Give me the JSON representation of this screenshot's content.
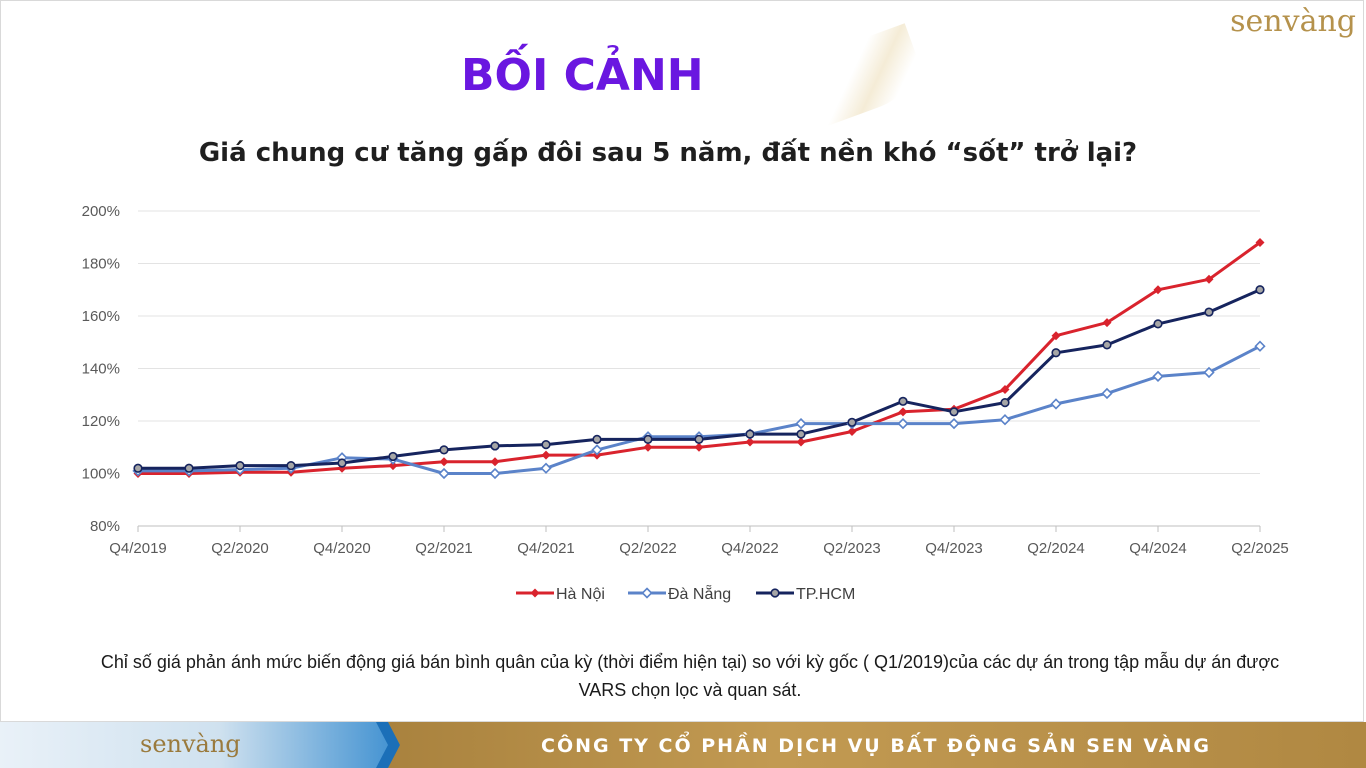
{
  "brand": {
    "logo_text": "senvàng"
  },
  "heading": "BỐI CẢNH",
  "subtitle": "Giá chung cư tăng gấp đôi sau 5 năm, đất nền khó “sốt” trở lại?",
  "note_line1": "Chỉ số giá phản ánh mức biến động giá bán bình quân của kỳ (thời điểm hiện tại) so với kỳ gốc ( Q1/2019)của các dự án trong tập mẫu dự án được",
  "note_line2": "VARS chọn lọc và quan sát.",
  "footer": {
    "company": "CÔNG TY CỔ PHẦN DỊCH VỤ BẤT ĐỘNG SẢN SEN VÀNG",
    "logo_text": "senvàng"
  },
  "colors": {
    "heading": "#6a17e0",
    "gold": "#b5924c",
    "blue": "#1b6fb8"
  },
  "chart_data": {
    "type": "line",
    "x": [
      "Q4/2019",
      "Q1/2020",
      "Q2/2020",
      "Q3/2020",
      "Q4/2020",
      "Q1/2021",
      "Q2/2021",
      "Q3/2021",
      "Q4/2021",
      "Q1/2022",
      "Q2/2022",
      "Q3/2022",
      "Q4/2022",
      "Q1/2023",
      "Q2/2023",
      "Q3/2023",
      "Q4/2023",
      "Q1/2024",
      "Q2/2024",
      "Q3/2024",
      "Q4/2024",
      "Q1/2025",
      "Q2/2025"
    ],
    "x_tick_labels": [
      "Q4/2019",
      "Q2/2020",
      "Q4/2020",
      "Q2/2021",
      "Q4/2021",
      "Q2/2022",
      "Q4/2022",
      "Q2/2023",
      "Q4/2023",
      "Q2/2024",
      "Q4/2024",
      "Q2/2025"
    ],
    "y_tick_labels": [
      "80%",
      "100%",
      "120%",
      "140%",
      "160%",
      "180%",
      "200%"
    ],
    "ylim": [
      80,
      200
    ],
    "y_unit": "%",
    "grid": true,
    "legend_position": "bottom",
    "series": [
      {
        "name": "Hà Nội",
        "color": "#d9232d",
        "marker": "diamond-filled",
        "values": [
          100,
          100,
          100.5,
          100.5,
          102,
          103,
          104.5,
          104.5,
          107,
          107,
          110,
          110,
          112,
          112,
          116,
          123.5,
          124.5,
          132,
          152.5,
          157.5,
          170,
          174,
          188
        ]
      },
      {
        "name": "Đà Nẵng",
        "color": "#5b83c9",
        "marker": "diamond-open",
        "values": [
          101,
          101,
          101.5,
          102,
          106,
          105.5,
          100,
          100,
          102,
          109,
          114,
          114,
          115,
          119,
          119,
          119,
          119,
          120.5,
          126.5,
          130.5,
          137,
          138.5,
          148.5
        ]
      },
      {
        "name": "TP.HCM",
        "color": "#16245e",
        "marker": "circle-gray",
        "values": [
          102,
          102,
          103,
          103,
          104,
          106.5,
          109,
          110.5,
          111,
          113,
          113,
          113,
          115,
          115,
          119.5,
          127.5,
          123.5,
          127,
          146,
          149,
          157,
          161.5,
          170
        ]
      }
    ]
  }
}
